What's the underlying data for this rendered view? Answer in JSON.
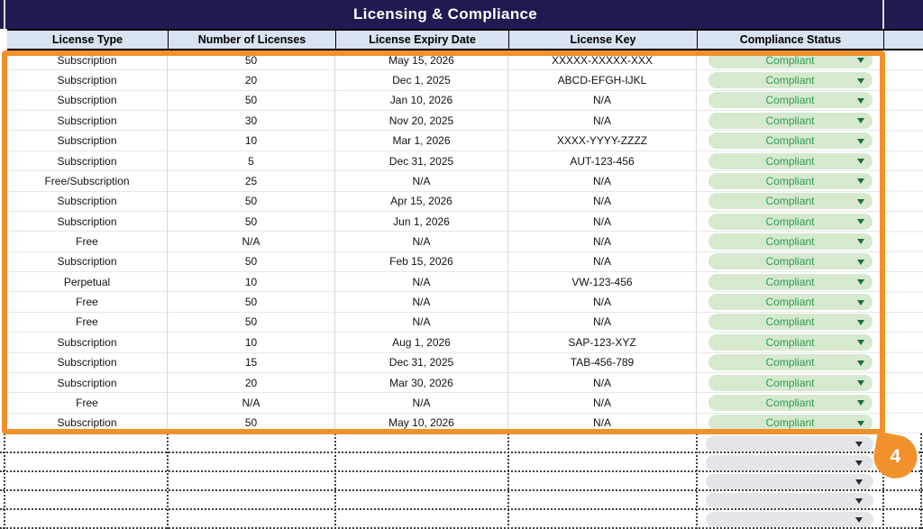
{
  "title": "Licensing & Compliance",
  "badge": {
    "label": "4"
  },
  "colors": {
    "banner_bg": "#1f1b52",
    "banner_text": "#ffffff",
    "header_bg": "#d8e2f1",
    "header_text": "#000000",
    "accent_orange": "#f0912c",
    "chip_green_bg": "#d6e9ce",
    "chip_green_text": "#2e9b51",
    "chip_green_arrow": "#1d6f3a",
    "chip_gray_bg": "#e3e5e9",
    "chip_gray_arrow": "#2a2a2a"
  },
  "table": {
    "columns": [
      "License Type",
      "Number of Licenses",
      "License Expiry Date",
      "License Key",
      "Compliance Status"
    ],
    "rows": [
      {
        "license_type": "Subscription",
        "number_of_licenses": "50",
        "license_expiry_date": "May 15, 2026",
        "license_key": "XXXXX-XXXXX-XXX",
        "compliance_status": "Compliant"
      },
      {
        "license_type": "Subscription",
        "number_of_licenses": "20",
        "license_expiry_date": "Dec 1, 2025",
        "license_key": "ABCD-EFGH-IJKL",
        "compliance_status": "Compliant"
      },
      {
        "license_type": "Subscription",
        "number_of_licenses": "50",
        "license_expiry_date": "Jan 10, 2026",
        "license_key": "N/A",
        "compliance_status": "Compliant"
      },
      {
        "license_type": "Subscription",
        "number_of_licenses": "30",
        "license_expiry_date": "Nov 20, 2025",
        "license_key": "N/A",
        "compliance_status": "Compliant"
      },
      {
        "license_type": "Subscription",
        "number_of_licenses": "10",
        "license_expiry_date": "Mar 1, 2026",
        "license_key": "XXXX-YYYY-ZZZZ",
        "compliance_status": "Compliant"
      },
      {
        "license_type": "Subscription",
        "number_of_licenses": "5",
        "license_expiry_date": "Dec 31, 2025",
        "license_key": "AUT-123-456",
        "compliance_status": "Compliant"
      },
      {
        "license_type": "Free/Subscription",
        "number_of_licenses": "25",
        "license_expiry_date": "N/A",
        "license_key": "N/A",
        "compliance_status": "Compliant"
      },
      {
        "license_type": "Subscription",
        "number_of_licenses": "50",
        "license_expiry_date": "Apr 15, 2026",
        "license_key": "N/A",
        "compliance_status": "Compliant"
      },
      {
        "license_type": "Subscription",
        "number_of_licenses": "50",
        "license_expiry_date": "Jun 1, 2026",
        "license_key": "N/A",
        "compliance_status": "Compliant"
      },
      {
        "license_type": "Free",
        "number_of_licenses": "N/A",
        "license_expiry_date": "N/A",
        "license_key": "N/A",
        "compliance_status": "Compliant"
      },
      {
        "license_type": "Subscription",
        "number_of_licenses": "50",
        "license_expiry_date": "Feb 15, 2026",
        "license_key": "N/A",
        "compliance_status": "Compliant"
      },
      {
        "license_type": "Perpetual",
        "number_of_licenses": "10",
        "license_expiry_date": "N/A",
        "license_key": "VW-123-456",
        "compliance_status": "Compliant"
      },
      {
        "license_type": "Free",
        "number_of_licenses": "50",
        "license_expiry_date": "N/A",
        "license_key": "N/A",
        "compliance_status": "Compliant"
      },
      {
        "license_type": "Free",
        "number_of_licenses": "50",
        "license_expiry_date": "N/A",
        "license_key": "N/A",
        "compliance_status": "Compliant"
      },
      {
        "license_type": "Subscription",
        "number_of_licenses": "10",
        "license_expiry_date": "Aug 1, 2026",
        "license_key": "SAP-123-XYZ",
        "compliance_status": "Compliant"
      },
      {
        "license_type": "Subscription",
        "number_of_licenses": "15",
        "license_expiry_date": "Dec 31, 2025",
        "license_key": "TAB-456-789",
        "compliance_status": "Compliant"
      },
      {
        "license_type": "Subscription",
        "number_of_licenses": "20",
        "license_expiry_date": "Mar 30, 2026",
        "license_key": "N/A",
        "compliance_status": "Compliant"
      },
      {
        "license_type": "Free",
        "number_of_licenses": "N/A",
        "license_expiry_date": "N/A",
        "license_key": "N/A",
        "compliance_status": "Compliant"
      },
      {
        "license_type": "Subscription",
        "number_of_licenses": "50",
        "license_expiry_date": "May 10, 2026",
        "license_key": "N/A",
        "compliance_status": "Compliant"
      }
    ]
  },
  "empty_rows": {
    "count": 5,
    "status_value": ""
  }
}
